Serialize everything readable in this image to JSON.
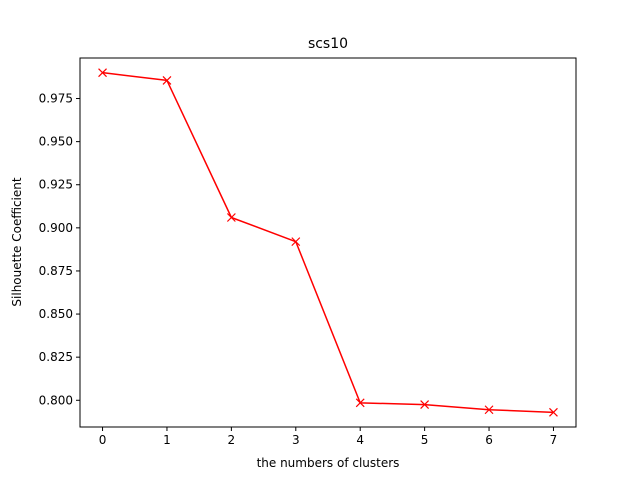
{
  "chart_data": {
    "type": "line",
    "title": "scs10",
    "xlabel": "the numbers of clusters",
    "ylabel": "Silhouette Coefficient",
    "x": [
      0,
      1,
      2,
      3,
      4,
      5,
      6,
      7
    ],
    "series": [
      {
        "values": [
          0.99,
          0.9855,
          0.906,
          0.892,
          0.7985,
          0.7975,
          0.7945,
          0.793
        ],
        "color": "#ff0000",
        "marker": "x"
      }
    ],
    "xlim": [
      -0.35,
      7.35
    ],
    "ylim": [
      0.7845,
      0.9985
    ],
    "xticks": [
      0,
      1,
      2,
      3,
      4,
      5,
      6,
      7
    ],
    "yticks": [
      0.8,
      0.825,
      0.85,
      0.875,
      0.9,
      0.925,
      0.95,
      0.975
    ],
    "ytick_labels": [
      "0.800",
      "0.825",
      "0.850",
      "0.875",
      "0.900",
      "0.925",
      "0.950",
      "0.975"
    ],
    "grid": false,
    "legend": false
  }
}
